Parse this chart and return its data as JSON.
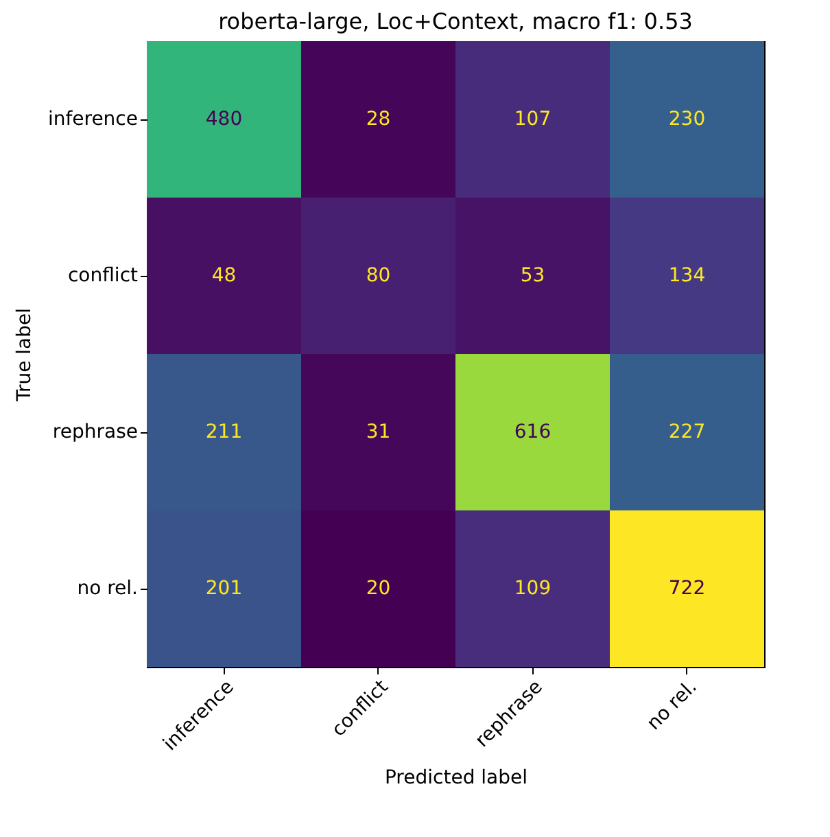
{
  "chart_data": {
    "type": "heatmap",
    "title": "roberta-large, Loc+Context, macro f1: 0.53",
    "xlabel": "Predicted label",
    "ylabel": "True label",
    "categories": [
      "inference",
      "conflict",
      "rephrase",
      "no rel."
    ],
    "y_categories": [
      "inference",
      "conflict",
      "rephrase",
      "no rel."
    ],
    "cells": [
      [
        480,
        28,
        107,
        230
      ],
      [
        48,
        80,
        53,
        134
      ],
      [
        211,
        31,
        616,
        227
      ],
      [
        201,
        20,
        109,
        722
      ]
    ],
    "data_labels": true
  }
}
